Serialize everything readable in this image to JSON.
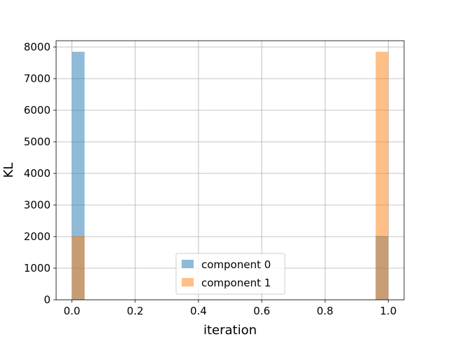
{
  "chart_data": {
    "type": "bar",
    "title": "",
    "xlabel": "iteration",
    "ylabel": "KL",
    "xlim": [
      -0.05,
      1.05
    ],
    "ylim": [
      0,
      8200
    ],
    "bin_width": 0.04,
    "x_ticks": [
      "0.0",
      "0.2",
      "0.4",
      "0.6",
      "0.8",
      "1.0"
    ],
    "x_tick_values": [
      0.0,
      0.2,
      0.4,
      0.6,
      0.8,
      1.0
    ],
    "y_ticks": [
      "0",
      "1000",
      "2000",
      "3000",
      "4000",
      "5000",
      "6000",
      "7000",
      "8000"
    ],
    "y_tick_values": [
      0,
      1000,
      2000,
      3000,
      4000,
      5000,
      6000,
      7000,
      8000
    ],
    "grid": true,
    "legend_position": "bottom-center",
    "series": [
      {
        "name": "component 0",
        "color": "#1f77b4",
        "alpha": 0.5,
        "bins": [
          {
            "x0": 0.0,
            "x1": 0.04,
            "value": 7850
          },
          {
            "x0": 0.96,
            "x1": 1.0,
            "value": 2020
          }
        ]
      },
      {
        "name": "component 1",
        "color": "#ff7f0e",
        "alpha": 0.5,
        "bins": [
          {
            "x0": 0.0,
            "x1": 0.04,
            "value": 2020
          },
          {
            "x0": 0.96,
            "x1": 1.0,
            "value": 7850
          }
        ]
      }
    ]
  }
}
